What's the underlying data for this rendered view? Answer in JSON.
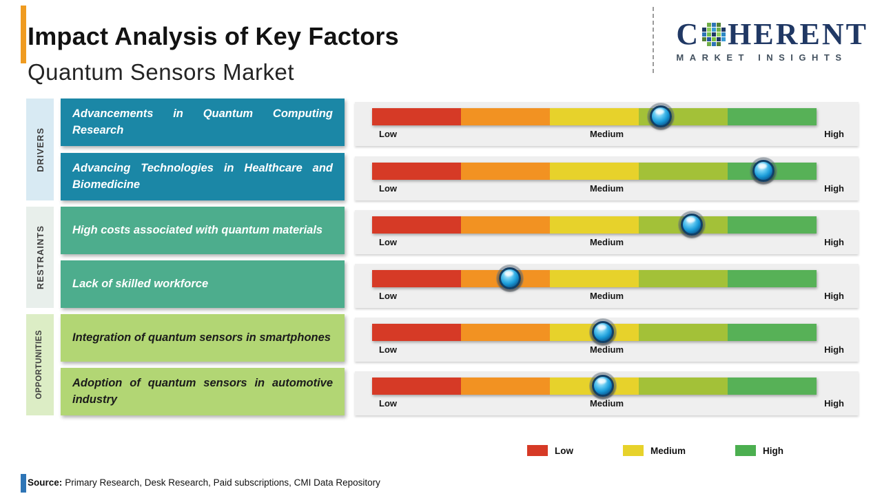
{
  "header": {
    "title": "Impact Analysis of Key Factors",
    "subtitle": "Quantum Sensors Market"
  },
  "logo": {
    "name": "COHERENT",
    "name_prefix": "C",
    "name_suffix": "HERENT",
    "tagline": "MARKET INSIGHTS"
  },
  "theme": {
    "accent_orange": "#ef9b20",
    "accent_blue": "#2e75b6",
    "logo_navy": "#203864",
    "panel_gray": "#efefef"
  },
  "chart_data": {
    "type": "bar",
    "title": "Impact Analysis of Key Factors",
    "subtitle": "Quantum Sensors Market",
    "scale": {
      "min_label": "Low",
      "mid_label": "Medium",
      "max_label": "High",
      "range_pct": [
        0,
        100
      ]
    },
    "scale_labels": [
      "Low",
      "Medium",
      "High"
    ],
    "segment_colors": [
      "#d63a26",
      "#f29222",
      "#e7d22b",
      "#a3c138",
      "#57b157"
    ],
    "groups": [
      {
        "label": "DRIVERS",
        "color": "#1b87a6",
        "text_color": "#ffffff",
        "sidebar_color": "#d8eaf3",
        "factors": [
          {
            "text": "Advancements in Quantum Computing Research",
            "impact_pct": 65
          },
          {
            "text": "Advancing Technologies in Healthcare and Biomedicine",
            "impact_pct": 88
          }
        ]
      },
      {
        "label": "RESTRAINTS",
        "color": "#4dad8d",
        "text_color": "#ffffff",
        "sidebar_color": "#e8efeb",
        "factors": [
          {
            "text": "High costs associated with quantum materials",
            "impact_pct": 72
          },
          {
            "text": "Lack of skilled workforce",
            "impact_pct": 31
          }
        ]
      },
      {
        "label": "OPPORTUNITIES",
        "color": "#b2d674",
        "text_color": "#1b1b1b",
        "sidebar_color": "#dcedc5",
        "factors": [
          {
            "text": "Integration of quantum sensors in smartphones",
            "impact_pct": 52
          },
          {
            "text": "Adoption of quantum sensors in automotive industry",
            "impact_pct": 52
          }
        ]
      }
    ],
    "legend": [
      {
        "label": "Low",
        "color": "#d63a26"
      },
      {
        "label": "Medium",
        "color": "#e7d22b"
      },
      {
        "label": "High",
        "color": "#4caf50"
      }
    ],
    "legend_position": "bottom-right"
  },
  "footer": {
    "source_label": "Source:",
    "source_text": "Primary Research, Desk Research, Paid subscriptions, CMI Data Repository"
  }
}
